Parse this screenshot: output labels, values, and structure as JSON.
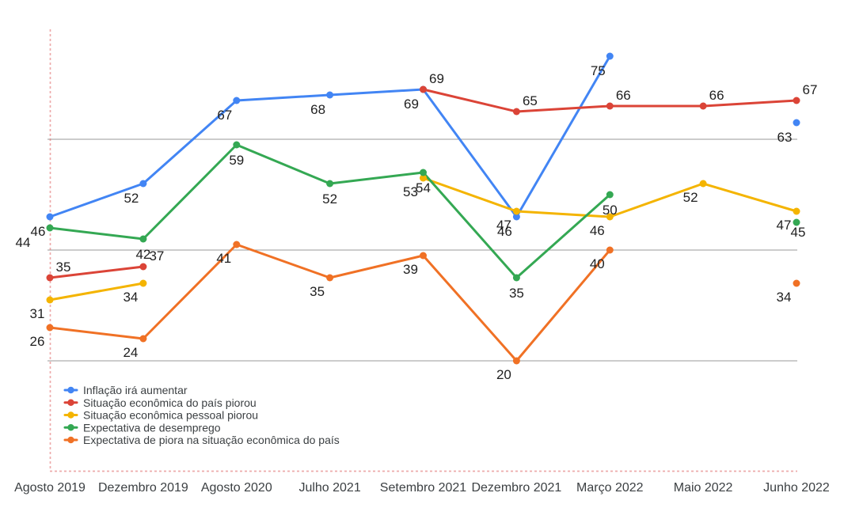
{
  "chart_data": {
    "type": "line",
    "title": "",
    "xlabel": "",
    "ylabel": "",
    "categories": [
      "Agosto 2019",
      "Dezembro 2019",
      "Agosto 2020",
      "Julho 2021",
      "Setembro 2021",
      "Dezembro 2021",
      "Março 2022",
      "Maio 2022",
      "Junho 2022"
    ],
    "series": [
      {
        "name": "Inflação irá aumentar",
        "color": "#4285f4",
        "values": [
          46,
          52,
          67,
          68,
          69,
          46,
          75,
          null,
          63
        ],
        "label_offset": [
          -15,
          18
        ],
        "label_overrides": {}
      },
      {
        "name": "Situação econômica do país piorou",
        "color": "#db4437",
        "values": [
          35,
          37,
          null,
          null,
          69,
          65,
          66,
          66,
          67
        ],
        "label_offset": [
          17,
          -14
        ],
        "label_overrides": {}
      },
      {
        "name": "Situação econômica pessoal piorou",
        "color": "#f4b400",
        "values": [
          31,
          34,
          null,
          null,
          53,
          47,
          46,
          52,
          47
        ],
        "label_offset": [
          -16,
          17
        ],
        "label_overrides": {}
      },
      {
        "name": "Expectativa de desemprego",
        "color": "#34a853",
        "values": [
          44,
          42,
          59,
          52,
          54,
          35,
          50,
          null,
          45
        ],
        "label_offset": [
          0,
          19
        ],
        "label_overrides": {
          "0": [
            -34,
            18
          ],
          "8": [
            2,
            12
          ]
        }
      },
      {
        "name": "Expectativa de piora na situação econômica do país",
        "color": "#f07125",
        "values": [
          26,
          24,
          41,
          35,
          39,
          20,
          40,
          null,
          34
        ],
        "label_offset": [
          -16,
          17
        ],
        "label_overrides": {}
      }
    ],
    "ylim": [
      0,
      80
    ],
    "y_gridlines": [
      20,
      40,
      60
    ],
    "grid": true,
    "legend_position": "bottom-left",
    "colors": {
      "gridline": "#999999",
      "baseline_dashed": "#e06666",
      "label_text": "#1f1f1f",
      "axis_text": "#3c4043",
      "legend_text": "#3c4043",
      "background": "#ffffff"
    }
  }
}
